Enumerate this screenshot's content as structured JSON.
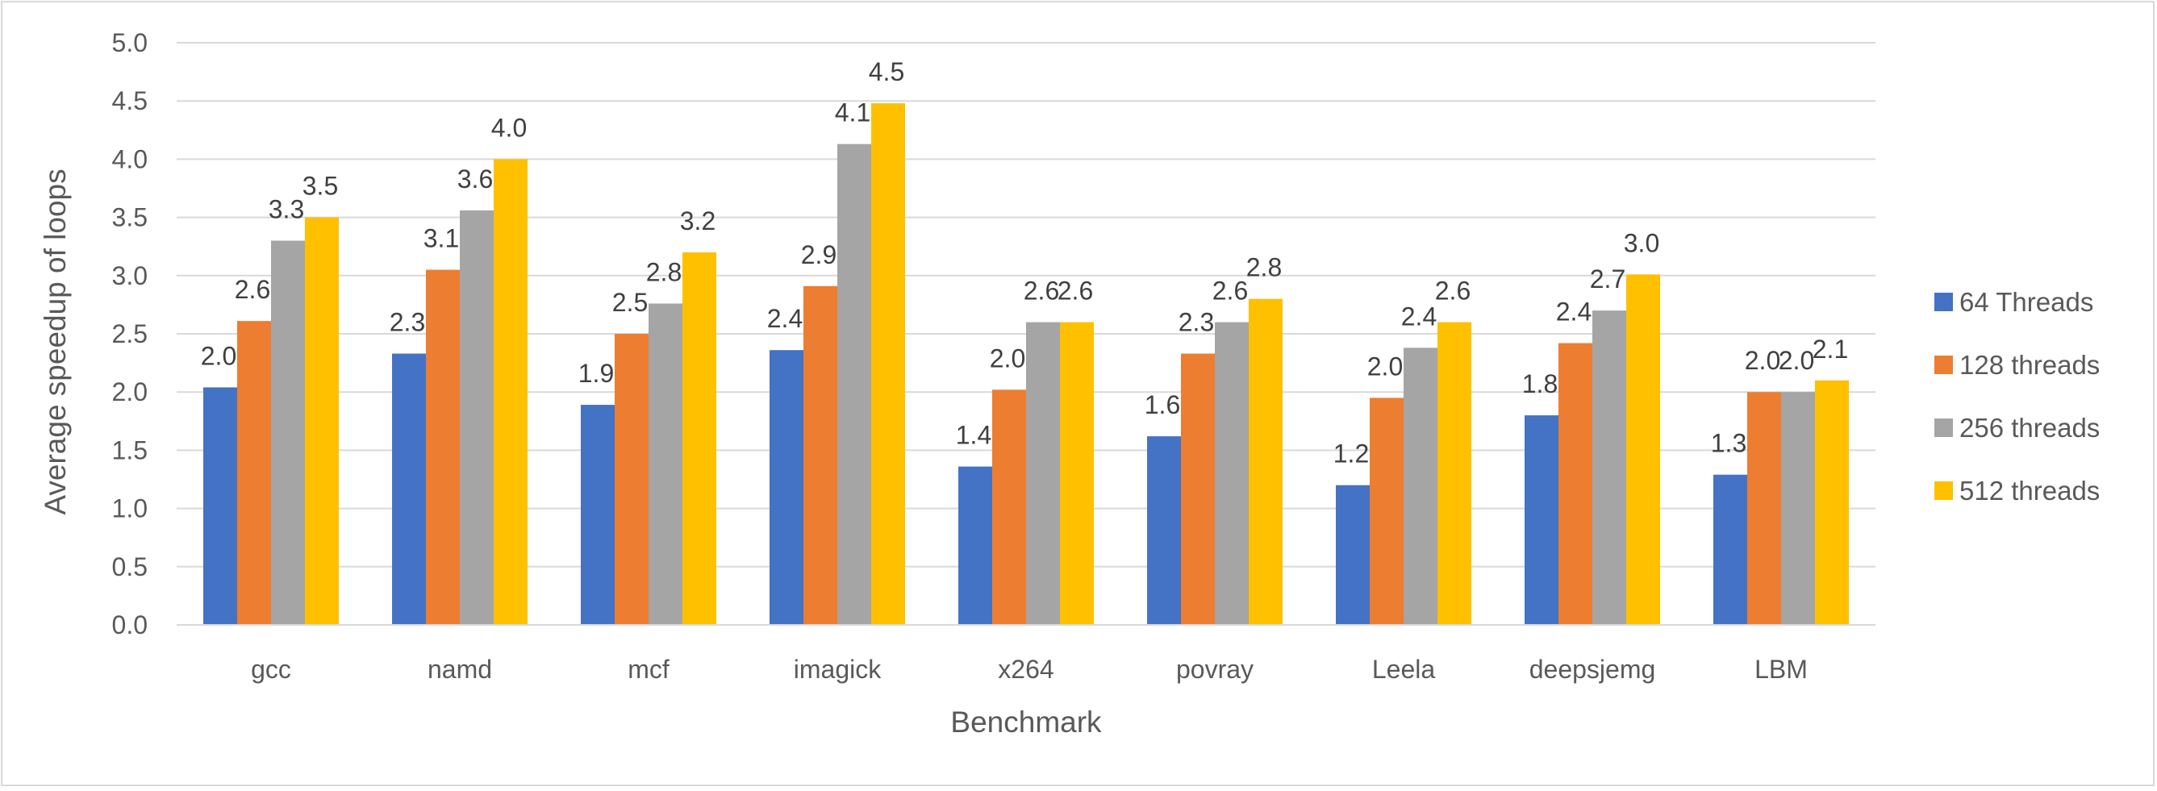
{
  "chart_data": {
    "type": "bar",
    "title": "",
    "xlabel": "Benchmark",
    "ylabel": "Average speedup of loops",
    "ylim": [
      0,
      5
    ],
    "ytick_step": 0.5,
    "grid": true,
    "legend_position": "right",
    "categories": [
      "gcc",
      "namd",
      "mcf",
      "imagick",
      "x264",
      "povray",
      "Leela",
      "deepsjemg",
      "LBM"
    ],
    "series": [
      {
        "name": "64 Threads",
        "color": "#4472c4",
        "values": [
          2.04,
          2.33,
          1.89,
          2.36,
          1.36,
          1.62,
          1.2,
          1.8,
          1.29
        ],
        "labels": [
          "2.0",
          "2.3",
          "1.9",
          "2.4",
          "1.4",
          "1.6",
          "1.2",
          "1.8",
          "1.3"
        ]
      },
      {
        "name": "128 threads",
        "color": "#ed7d31",
        "values": [
          2.61,
          3.05,
          2.5,
          2.91,
          2.02,
          2.33,
          1.95,
          2.42,
          2.0
        ],
        "labels": [
          "2.6",
          "3.1",
          "2.5",
          "2.9",
          "2.0",
          "2.3",
          "2.0",
          "2.4",
          "2.0"
        ]
      },
      {
        "name": "256 threads",
        "color": "#a5a5a5",
        "values": [
          3.3,
          3.56,
          2.76,
          4.13,
          2.6,
          2.6,
          2.38,
          2.7,
          2.0
        ],
        "labels": [
          "3.3",
          "3.6",
          "2.8",
          "4.1",
          "2.6",
          "2.6",
          "2.4",
          "2.7",
          "2.0"
        ]
      },
      {
        "name": "512 threads",
        "color": "#ffc000",
        "values": [
          3.5,
          4.0,
          3.2,
          4.48,
          2.6,
          2.8,
          2.6,
          3.01,
          2.1
        ],
        "labels": [
          "3.5",
          "4.0",
          "3.2",
          "4.5",
          "2.6",
          "2.8",
          "2.6",
          "3.0",
          "2.1"
        ]
      }
    ]
  }
}
